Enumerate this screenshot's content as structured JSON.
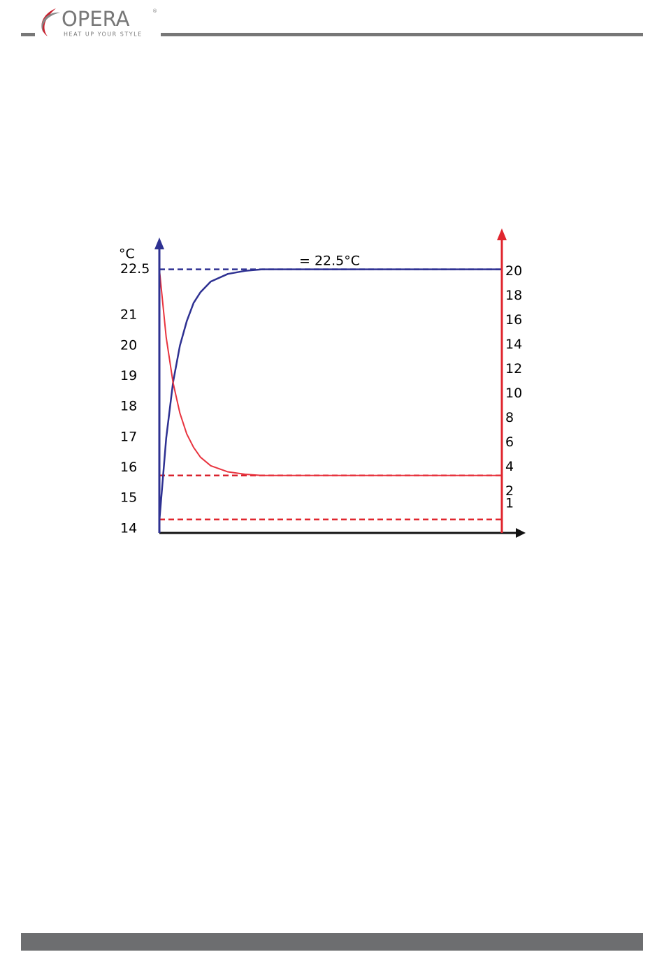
{
  "header": {
    "brand": "OPERA",
    "registered": "®",
    "tagline": "HEAT UP YOUR STYLE"
  },
  "chart_data": {
    "type": "line",
    "annotation": "= 22.5°C",
    "y_unit": "°C",
    "x": [
      0,
      2,
      4,
      6,
      8,
      10,
      12,
      15,
      20,
      25,
      30,
      40,
      60,
      80,
      100
    ],
    "xlim": [
      0,
      100
    ],
    "ylim": [
      13.86,
      23.43
    ],
    "yticks": [
      14,
      15,
      16,
      17,
      18,
      19,
      20,
      21,
      22.5
    ],
    "y2lim": [
      -1.4,
      22.5
    ],
    "y2ticks": [
      1,
      2,
      4,
      6,
      8,
      10,
      12,
      14,
      16,
      18,
      20
    ],
    "series": [
      {
        "color": "#2e3192",
        "values": [
          14.25,
          16.97,
          18.8,
          20.0,
          20.8,
          21.4,
          21.75,
          22.1,
          22.35,
          22.45,
          22.5,
          22.5,
          22.5,
          22.5,
          22.5
        ]
      },
      {
        "color": "#e8343f",
        "axis": "y2",
        "values": [
          20.2,
          14.6,
          10.9,
          8.4,
          6.7,
          5.6,
          4.8,
          4.1,
          3.6,
          3.4,
          3.3,
          3.3,
          3.3,
          3.3,
          3.3
        ]
      }
    ],
    "reference_lines": [
      {
        "axis": "y",
        "value": 22.5,
        "color": "#2e3192"
      },
      {
        "axis": "y2",
        "value": 3.3,
        "color": "#d9232e"
      },
      {
        "axis": "y2",
        "value": -0.3,
        "color": "#e0262e"
      }
    ]
  }
}
